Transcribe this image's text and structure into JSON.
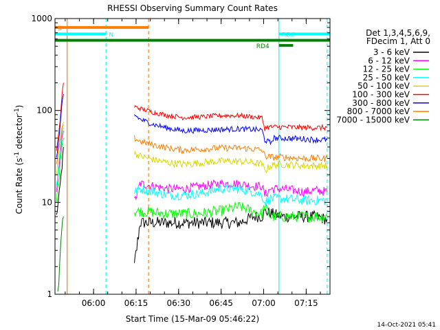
{
  "chart_data": {
    "type": "line",
    "title": "RHESSI Observing Summary Count Rates",
    "xlabel": "Start Time (15-Mar-09 05:46:22)",
    "ylabel_main": "Count Rate (s",
    "ylabel_sup1": "-1",
    "ylabel_mid": " detector",
    "ylabel_sup2": "-1",
    "ylabel_end": ")",
    "y_scale": "log",
    "ylim": [
      1,
      1000
    ],
    "xlim_minutes": [
      0,
      97
    ],
    "x_ticks": [
      {
        "label": "06:00",
        "minutes": 13.6
      },
      {
        "label": "06:15",
        "minutes": 28.6
      },
      {
        "label": "06:30",
        "minutes": 43.6
      },
      {
        "label": "06:45",
        "minutes": 58.6
      },
      {
        "label": "07:00",
        "minutes": 73.6
      },
      {
        "label": "07:15",
        "minutes": 88.6
      }
    ],
    "y_ticks": [
      {
        "label": "1",
        "value": 1
      },
      {
        "label": "10",
        "value": 10
      },
      {
        "label": "100",
        "value": 100
      },
      {
        "label": "1000",
        "value": 1000
      }
    ],
    "legend": {
      "header": [
        "Det 1,3,4,5,6,9,",
        "FDecim 1, Att 0"
      ],
      "placement": "right"
    },
    "series": [
      {
        "name": "3 - 6 keV",
        "color": "#000000",
        "segments": [
          [
            [
              0.5,
              7
            ],
            [
              1.5,
              12
            ],
            [
              2.5,
              25
            ],
            [
              3,
              40
            ]
          ],
          [
            [
              28,
              2
            ],
            [
              30,
              6
            ],
            [
              40,
              6
            ],
            [
              55,
              6
            ],
            [
              65,
              6
            ],
            [
              70,
              7
            ],
            [
              73,
              7
            ],
            [
              74,
              8
            ],
            [
              80,
              7
            ],
            [
              88,
              7
            ],
            [
              92,
              7
            ],
            [
              96,
              6.5
            ]
          ]
        ]
      },
      {
        "name": "6 - 12 keV",
        "color": "#ff00ff",
        "segments": [
          [
            [
              0.5,
              12
            ],
            [
              1.5,
              25
            ],
            [
              2.5,
              55
            ],
            [
              3,
              60
            ]
          ],
          [
            [
              28,
              10
            ],
            [
              30,
              16
            ],
            [
              35,
              15
            ],
            [
              40,
              14
            ],
            [
              45,
              14
            ],
            [
              52,
              15
            ],
            [
              58,
              16
            ],
            [
              65,
              16
            ],
            [
              70,
              15
            ],
            [
              73,
              15
            ],
            [
              74,
              12
            ],
            [
              76,
              14
            ],
            [
              80,
              14
            ],
            [
              88,
              13
            ],
            [
              92,
              13.5
            ],
            [
              96,
              13
            ]
          ]
        ]
      },
      {
        "name": "12 - 25 keV",
        "color": "#00ff00",
        "segments": [
          [
            [
              0.5,
              10
            ],
            [
              1.5,
              20
            ],
            [
              2.5,
              45
            ],
            [
              3,
              50
            ]
          ],
          [
            [
              28,
              8
            ],
            [
              30,
              8
            ],
            [
              40,
              7.5
            ],
            [
              50,
              7.5
            ],
            [
              58,
              8
            ],
            [
              65,
              9
            ],
            [
              70,
              8
            ],
            [
              73,
              7.5
            ],
            [
              74,
              9
            ],
            [
              76,
              7
            ],
            [
              80,
              7
            ],
            [
              88,
              7
            ],
            [
              92,
              7
            ],
            [
              96,
              7
            ]
          ]
        ]
      },
      {
        "name": "25 - 50 keV",
        "color": "#00ffff",
        "segments": [
          [
            [
              0.5,
              15
            ],
            [
              1.5,
              30
            ],
            [
              2.5,
              60
            ],
            [
              3,
              65
            ]
          ],
          [
            [
              28,
              13
            ],
            [
              30,
              14
            ],
            [
              35,
              13
            ],
            [
              40,
              12
            ],
            [
              45,
              12
            ],
            [
              52,
              12.5
            ],
            [
              58,
              14
            ],
            [
              65,
              14
            ],
            [
              70,
              13
            ],
            [
              73,
              12
            ],
            [
              74,
              10
            ],
            [
              76,
              11
            ],
            [
              80,
              11
            ],
            [
              88,
              10.5
            ],
            [
              92,
              10.5
            ],
            [
              96,
              10.5
            ]
          ]
        ]
      },
      {
        "name": "50 - 100 keV",
        "color": "#d8d800",
        "segments": [
          [
            [
              0.5,
              20
            ],
            [
              1.5,
              40
            ],
            [
              2.5,
              70
            ],
            [
              3,
              75
            ]
          ],
          [
            [
              28,
              34
            ],
            [
              30,
              32
            ],
            [
              35,
              29
            ],
            [
              40,
              27
            ],
            [
              45,
              26
            ],
            [
              52,
              27
            ],
            [
              58,
              28
            ],
            [
              65,
              28
            ],
            [
              70,
              27
            ],
            [
              73,
              26
            ],
            [
              74,
              22
            ],
            [
              76,
              25
            ],
            [
              80,
              26
            ],
            [
              88,
              25
            ],
            [
              92,
              25
            ],
            [
              96,
              25
            ]
          ]
        ]
      },
      {
        "name": "100 - 300 keV",
        "color": "#ff0000",
        "segments": [
          [
            [
              0.5,
              35
            ],
            [
              1.5,
              60
            ],
            [
              2.5,
              150
            ],
            [
              3,
              200
            ]
          ],
          [
            [
              28,
              110
            ],
            [
              30,
              105
            ],
            [
              35,
              95
            ],
            [
              40,
              88
            ],
            [
              45,
              84
            ],
            [
              52,
              85
            ],
            [
              58,
              88
            ],
            [
              65,
              88
            ],
            [
              70,
              85
            ],
            [
              73,
              83
            ],
            [
              74,
              64
            ],
            [
              75,
              66
            ],
            [
              80,
              66
            ],
            [
              88,
              65
            ],
            [
              92,
              65
            ],
            [
              96,
              65
            ]
          ]
        ]
      },
      {
        "name": "300 - 800 keV",
        "color": "#0000ff",
        "segments": [
          [
            [
              0.5,
              30
            ],
            [
              1.5,
              50
            ],
            [
              2.5,
              120
            ],
            [
              3,
              150
            ]
          ],
          [
            [
              28,
              90
            ],
            [
              30,
              80
            ],
            [
              35,
              70
            ],
            [
              40,
              64
            ],
            [
              45,
              60
            ],
            [
              52,
              61
            ],
            [
              58,
              62
            ],
            [
              65,
              63
            ],
            [
              70,
              62
            ],
            [
              73,
              61
            ],
            [
              74,
              48
            ],
            [
              76,
              44
            ],
            [
              77,
              50
            ],
            [
              80,
              50
            ],
            [
              88,
              49
            ],
            [
              92,
              48
            ],
            [
              96,
              48
            ]
          ]
        ]
      },
      {
        "name": "800 - 7000 keV",
        "color": "#ff8000",
        "segments": [
          [
            [
              0.5,
              25
            ],
            [
              1.5,
              40
            ],
            [
              2.5,
              60
            ],
            [
              3,
              70
            ]
          ],
          [
            [
              28,
              50
            ],
            [
              30,
              46
            ],
            [
              35,
              42
            ],
            [
              40,
              39
            ],
            [
              45,
              37
            ],
            [
              52,
              38
            ],
            [
              58,
              39
            ],
            [
              65,
              39
            ],
            [
              70,
              38
            ],
            [
              73,
              37
            ],
            [
              74,
              32
            ],
            [
              76,
              31
            ],
            [
              80,
              31
            ],
            [
              88,
              30
            ],
            [
              92,
              30
            ],
            [
              96,
              30
            ]
          ]
        ]
      },
      {
        "name": "7000 - 15000 keV",
        "color": "#008000",
        "segments": [
          [
            [
              1,
              1
            ],
            [
              2,
              4
            ],
            [
              3,
              7
            ]
          ]
        ]
      }
    ],
    "annotations": [
      {
        "label": "S",
        "color": "#ff8000",
        "start": 0,
        "end": 33,
        "value": 800,
        "label_at": 1
      },
      {
        "label": "N",
        "color": "#00ffff",
        "start": 0,
        "end": 18,
        "value": 680,
        "label_at": 19
      },
      {
        "label": "",
        "color": "#008000",
        "start": 0,
        "end": 97,
        "value": 580,
        "label_at": 0
      },
      {
        "label": "RD4",
        "color": "#008000",
        "start": 79,
        "end": 84,
        "value": 510,
        "label_at": 71
      },
      {
        "label": "RD0",
        "color": "#00ffff",
        "start": 79,
        "end": 97,
        "value": 680,
        "label_at": 80
      }
    ],
    "vertical_markers": [
      {
        "color": "#ff8000",
        "style": "solid",
        "minutes": 4.3
      },
      {
        "color": "#00ffff",
        "style": "dashed",
        "minutes": 18
      },
      {
        "color": "#ff8000",
        "style": "dashed",
        "minutes": 33
      },
      {
        "color": "#00ffff",
        "style": "solid",
        "minutes": 79
      },
      {
        "color": "#00ffff",
        "style": "dashed",
        "minutes": 96
      }
    ]
  },
  "footer_timestamp": "14-Oct-2021 05:41"
}
